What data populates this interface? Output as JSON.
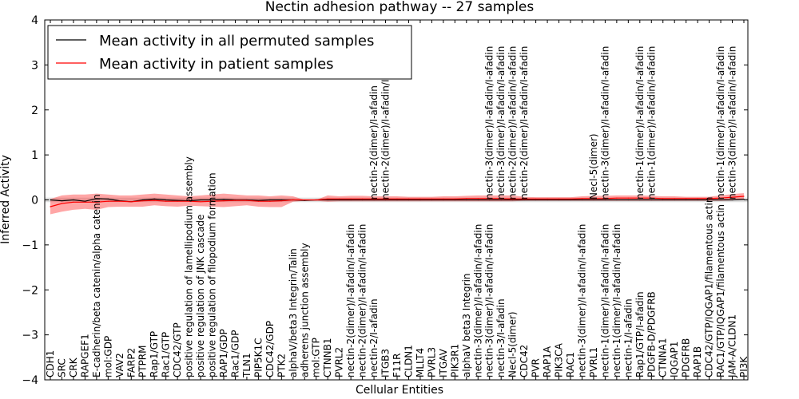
{
  "chart_data": {
    "type": "line",
    "title": "Nectin adhesion pathway -- 27 samples",
    "xlabel": "Cellular Entities",
    "ylabel": "Inferred Activity",
    "ylim": [
      -4,
      4
    ],
    "yticks": [
      "−4",
      "−3",
      "−2",
      "−1",
      "0",
      "1",
      "2",
      "3",
      "4"
    ],
    "grid": false,
    "legend_position": "top-left",
    "categories": [
      "CDH1",
      "SRC",
      "CRK",
      "RAPGEF1",
      "E-cadherin/beta catenin/alpha catenin",
      "mol:GDP",
      "VAV2",
      "FARP2",
      "PTPRM",
      "Rap1/GTP",
      "Rac1/GTP",
      "CDC42/GTP",
      "positive regulation of lamellipodium assembly",
      "positive regulation of JNK cascade",
      "positive regulation of filopodium formation",
      "RAP1/GDP",
      "Rac1/GDP",
      "TLN1",
      "PIP5K1C",
      "CDC42/GDP",
      "PTK2",
      "alphaV/beta3 Integrin/Talin",
      "adherens junction assembly",
      "mol:GTP",
      "CTNNB1",
      "PVRL2",
      "nectin-2(dimer)/I-afadin/I-afadin",
      "nectin-2(dimer)/I-afadin/I-afadin",
      "nectin-2/I-afadin",
      "ITGB3",
      "F11R",
      "CLDN1",
      "MLLT4",
      "PVRL3",
      "ITGAV",
      "PIK3R1",
      "alphaV beta3 Integrin",
      "nectin-3(dimer)/I-afadin/I-afadin",
      "nectin-3(dimer)/I-afadin/I-afadin",
      "nectin-3/I-afadin",
      "Necl-5(dimer)",
      "CDC42",
      "PVR",
      "RAP1A",
      "PIK3CA",
      "RAC1",
      "nectin-3(dimer)/I-afadin/I-afadin",
      "PVRL1",
      "nectin-1(dimer)/I-afadin/I-afadin",
      "nectin-1(dimer)/I-afadin/I-afadin",
      "nectin-1/I-afadin",
      "Rap1/GTP/I-afadin",
      "PDGFB-D/PDGFRB",
      "CTNNA1",
      "IQGAP1",
      "PDGFRB",
      "RAP1B",
      "CDC42/GTP/IQGAP1/filamentous actin",
      "RAC1/GTP/IQGAP1/filamentous actin",
      "JAM-A/CLDN1",
      "PI3K"
    ],
    "top_labels": [
      {
        "index": 28,
        "text": "nectin-2(dimer)/I-afadin"
      },
      {
        "index": 29,
        "text": "nectin-2(dimer)/I-afadin/I-afadin"
      },
      {
        "index": 38,
        "text": "nectin-3(dimer)/I-afadin/I-afadin"
      },
      {
        "index": 39,
        "text": "nectin-3(dimer)/I-afadin/I-afadin"
      },
      {
        "index": 40,
        "text": "nectin-2(dimer)/I-afadin/I-afadin"
      },
      {
        "index": 41,
        "text": "nectin-2(dimer)/I-afadin/I-afadin"
      },
      {
        "index": 47,
        "text": "Necl-5(dimer)"
      },
      {
        "index": 48,
        "text": "nectin-3(dimer)/I-afadin/I-afadin"
      },
      {
        "index": 51,
        "text": "nectin-1(dimer)/I-afadin/I-afadin"
      },
      {
        "index": 52,
        "text": "nectin-1(dimer)/I-afadin/I-afadin"
      },
      {
        "index": 58,
        "text": "nectin-1(dimer)/I-afadin/I-afadin"
      },
      {
        "index": 59,
        "text": "nectin-3(dimer)/I-afadin/I-afadin"
      }
    ],
    "series": [
      {
        "name": "Mean activity in all permuted samples",
        "color": "#000000",
        "values": [
          0.0,
          -0.02,
          0.0,
          -0.03,
          0.03,
          0.02,
          -0.02,
          -0.04,
          0.0,
          0.02,
          0.0,
          -0.01,
          -0.02,
          0.0,
          0.0,
          0.01,
          0.0,
          0.0,
          -0.01,
          0.0,
          0.0,
          0.0,
          -0.01,
          0.0,
          0.0,
          0.0,
          0.0,
          0.0,
          0.0,
          0.0,
          0.0,
          0.0,
          0.0,
          0.0,
          0.0,
          0.0,
          0.0,
          0.0,
          0.0,
          0.0,
          0.0,
          0.0,
          0.0,
          0.0,
          0.0,
          0.0,
          0.0,
          0.0,
          0.0,
          0.0,
          0.0,
          0.0,
          0.0,
          0.0,
          0.0,
          0.0,
          0.0,
          0.0,
          0.0,
          0.0,
          0.01
        ]
      },
      {
        "name": "Mean activity in patient samples",
        "color": "#ff0000",
        "values": [
          -0.15,
          -0.08,
          -0.05,
          -0.05,
          -0.05,
          -0.03,
          -0.03,
          -0.04,
          -0.02,
          -0.01,
          -0.03,
          -0.03,
          -0.03,
          -0.04,
          -0.03,
          -0.02,
          -0.01,
          -0.01,
          -0.03,
          -0.03,
          -0.02,
          0.0,
          0.0,
          0.0,
          0.02,
          0.02,
          0.02,
          0.02,
          0.02,
          0.02,
          0.02,
          0.02,
          0.02,
          0.02,
          0.02,
          0.02,
          0.03,
          0.03,
          0.03,
          0.03,
          0.02,
          0.02,
          0.02,
          0.02,
          0.02,
          0.02,
          0.03,
          0.03,
          0.03,
          0.04,
          0.04,
          0.04,
          0.04,
          0.03,
          0.03,
          0.03,
          0.03,
          0.03,
          0.04,
          0.06,
          0.08
        ],
        "band_upper": [
          0.02,
          0.1,
          0.12,
          0.12,
          0.14,
          0.12,
          0.1,
          0.1,
          0.12,
          0.14,
          0.12,
          0.1,
          0.08,
          0.1,
          0.12,
          0.14,
          0.12,
          0.1,
          0.1,
          0.08,
          0.1,
          0.08,
          0.0,
          0.0,
          0.1,
          0.08,
          0.09,
          0.09,
          0.08,
          0.08,
          0.08,
          0.07,
          0.07,
          0.07,
          0.08,
          0.08,
          0.09,
          0.1,
          0.1,
          0.1,
          0.1,
          0.07,
          0.06,
          0.06,
          0.06,
          0.06,
          0.08,
          0.09,
          0.09,
          0.1,
          0.1,
          0.1,
          0.09,
          0.08,
          0.08,
          0.07,
          0.07,
          0.07,
          0.1,
          0.13,
          0.15
        ],
        "band_lower": [
          -0.32,
          -0.26,
          -0.22,
          -0.2,
          -0.22,
          -0.16,
          -0.15,
          -0.15,
          -0.15,
          -0.12,
          -0.14,
          -0.15,
          -0.13,
          -0.14,
          -0.15,
          -0.16,
          -0.14,
          -0.12,
          -0.15,
          -0.16,
          -0.16,
          -0.04,
          -0.02,
          -0.02,
          -0.04,
          -0.03,
          -0.03,
          -0.03,
          -0.03,
          -0.03,
          -0.03,
          -0.03,
          -0.03,
          -0.03,
          -0.03,
          -0.03,
          -0.03,
          -0.03,
          -0.03,
          -0.03,
          -0.03,
          -0.02,
          -0.02,
          -0.02,
          -0.02,
          -0.02,
          -0.02,
          -0.02,
          -0.02,
          -0.02,
          -0.02,
          -0.02,
          -0.02,
          -0.02,
          -0.02,
          -0.02,
          -0.02,
          -0.02,
          -0.02,
          -0.01,
          0.0
        ]
      }
    ],
    "null_band_color": "#cccccc",
    "null_band_halfwidth": 0.05
  }
}
